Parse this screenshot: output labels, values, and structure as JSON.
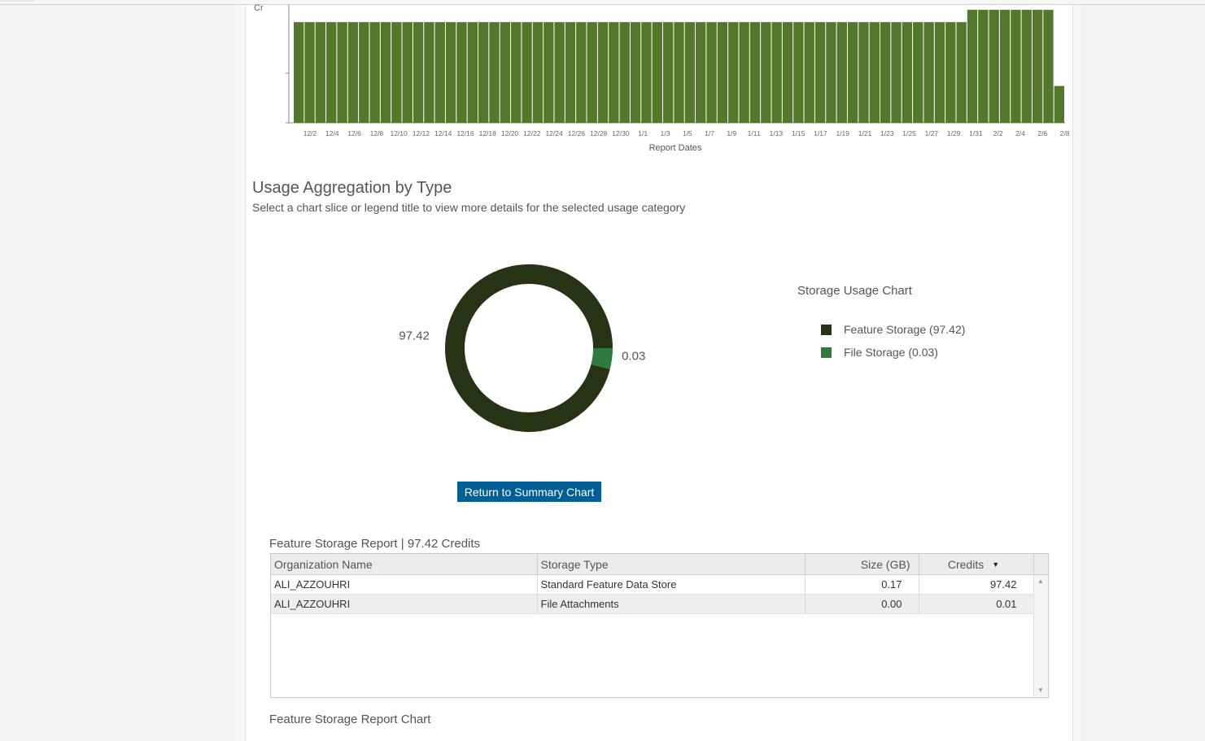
{
  "bar_chart": {
    "chart_data": {
      "type": "bar",
      "xlabel": "Report Dates",
      "ylabel_partial": "Cr",
      "tick_labels": [
        "12/2",
        "12/4",
        "12/6",
        "12/8",
        "12/10",
        "12/12",
        "12/14",
        "12/16",
        "12/18",
        "12/20",
        "12/22",
        "12/24",
        "12/26",
        "12/28",
        "12/30",
        "1/1",
        "1/3",
        "1/5",
        "1/7",
        "1/9",
        "1/11",
        "1/13",
        "1/15",
        "1/17",
        "1/19",
        "1/21",
        "1/23",
        "1/25",
        "1/27",
        "1/29",
        "1/31",
        "2/2",
        "2/4",
        "2/6",
        "2/8"
      ],
      "values": [
        82,
        82,
        82,
        82,
        82,
        82,
        82,
        82,
        82,
        82,
        82,
        82,
        82,
        82,
        82,
        82,
        82,
        82,
        82,
        82,
        82,
        82,
        82,
        82,
        82,
        82,
        82,
        82,
        82,
        82,
        82,
        82,
        82,
        82,
        82,
        82,
        82,
        82,
        82,
        82,
        82,
        82,
        82,
        82,
        82,
        82,
        82,
        82,
        82,
        82,
        82,
        82,
        82,
        82,
        82,
        82,
        82,
        82,
        82,
        82,
        82,
        82,
        92,
        92,
        92,
        92,
        92,
        92,
        92,
        92,
        30
      ],
      "color": "#53782c"
    }
  },
  "section": {
    "title": "Usage Aggregation by Type",
    "subtitle": "Select a chart slice or legend title to view more details for the selected usage category"
  },
  "donut_chart": {
    "chart_data": {
      "type": "pie",
      "slices": [
        {
          "label": "Feature Storage",
          "value": 97.42,
          "color": "#263314",
          "display": "97.42"
        },
        {
          "label": "File Storage",
          "value": 0.03,
          "color": "#2f7a3d",
          "display": "0.03"
        }
      ]
    },
    "legend_title": "Storage Usage Chart",
    "legend": [
      {
        "label": "Feature Storage (97.42)",
        "color": "#263314"
      },
      {
        "label": "File Storage (0.03)",
        "color": "#2f7a3d"
      }
    ]
  },
  "return_button": "Return to Summary Chart",
  "report": {
    "title": "Feature Storage Report | 97.42 Credits",
    "columns": [
      "Organization Name",
      "Storage Type",
      "Size (GB)",
      "Credits"
    ],
    "sort_indicator": "▼",
    "rows": [
      [
        "ALI_AZZOUHRI",
        "Standard Feature Data Store",
        "0.17",
        "97.42"
      ],
      [
        "ALI_AZZOUHRI",
        "File Attachments",
        "0.00",
        "0.01"
      ]
    ],
    "scroll_up": "▲",
    "scroll_down": "▼"
  },
  "report_chart_title": "Feature Storage Report Chart"
}
